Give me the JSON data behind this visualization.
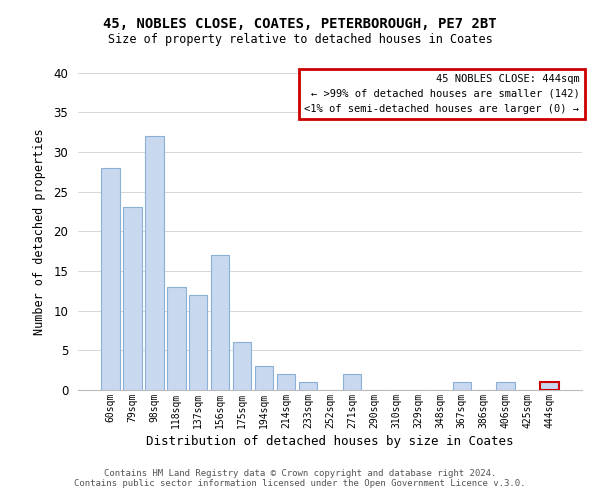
{
  "title1": "45, NOBLES CLOSE, COATES, PETERBOROUGH, PE7 2BT",
  "title2": "Size of property relative to detached houses in Coates",
  "xlabel": "Distribution of detached houses by size in Coates",
  "ylabel": "Number of detached properties",
  "bar_color": "#c8d8ef",
  "bar_edge_color": "#8ab0d8",
  "categories": [
    "60sqm",
    "79sqm",
    "98sqm",
    "118sqm",
    "137sqm",
    "156sqm",
    "175sqm",
    "194sqm",
    "214sqm",
    "233sqm",
    "252sqm",
    "271sqm",
    "290sqm",
    "310sqm",
    "329sqm",
    "348sqm",
    "367sqm",
    "386sqm",
    "406sqm",
    "425sqm",
    "444sqm"
  ],
  "values": [
    28,
    23,
    32,
    13,
    12,
    17,
    6,
    3,
    2,
    1,
    0,
    2,
    0,
    0,
    0,
    0,
    1,
    0,
    1,
    0,
    1
  ],
  "ylim": [
    0,
    40
  ],
  "yticks": [
    0,
    5,
    10,
    15,
    20,
    25,
    30,
    35,
    40
  ],
  "legend_title": "45 NOBLES CLOSE: 444sqm",
  "legend_line1": "← >99% of detached houses are smaller (142)",
  "legend_line2": "<1% of semi-detached houses are larger (0) →",
  "legend_box_color": "#ffffff",
  "legend_box_edge": "#cc0000",
  "footer1": "Contains HM Land Registry data © Crown copyright and database right 2024.",
  "footer2": "Contains public sector information licensed under the Open Government Licence v.3.0.",
  "highlight_bar_index": 20,
  "highlight_bar_edge_color": "#cc0000"
}
